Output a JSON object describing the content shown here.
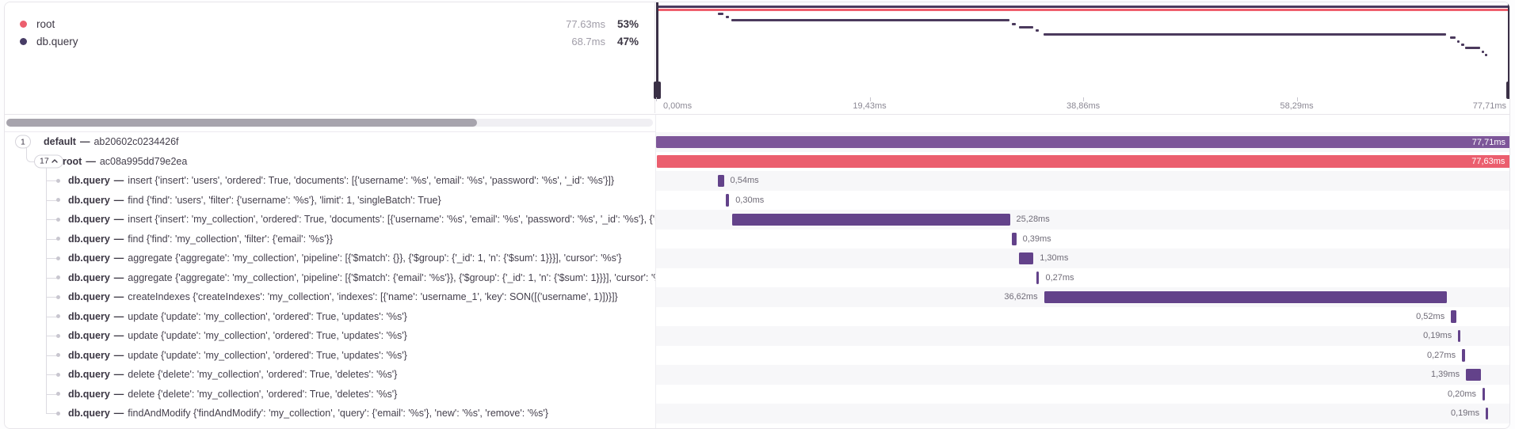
{
  "colors": {
    "root_red": "#eb5e6e",
    "default_purple": "#7d5699",
    "query_purple": "#63428a",
    "minimap_purple": "#4b3a5d",
    "minimap_red": "#ef606e",
    "handle_dark": "#3a3046",
    "stripe": "#f7f7f9"
  },
  "separator": "—",
  "legend": {
    "items": [
      {
        "id": "root",
        "label": "root",
        "dot_color": "#ec5f6e",
        "duration": "77.63ms",
        "percent": "53%"
      },
      {
        "id": "db-query",
        "label": "db.query",
        "dot_color": "#483d66",
        "duration": "68.7ms",
        "percent": "47%"
      }
    ]
  },
  "axis": {
    "unit": "ms",
    "ticks": [
      {
        "label": "0,00ms",
        "t": 0
      },
      {
        "label": "19,43ms",
        "t": 19.43
      },
      {
        "label": "38,86ms",
        "t": 38.86
      },
      {
        "label": "58,29ms",
        "t": 58.29
      },
      {
        "label": "77,71ms",
        "t": 77.71
      }
    ]
  },
  "trace": {
    "total_ms": 77.71,
    "rows": [
      {
        "badge": "1",
        "chevron": false,
        "name": "default",
        "detail": "ab20602c0234426f",
        "depth": 0,
        "kind": "default",
        "start_ms": 0,
        "duration_ms": 77.71,
        "bar_label": "77,71ms",
        "label_pos": "inside"
      },
      {
        "badge": "17",
        "chevron": true,
        "name": "root",
        "detail": "ac08a995dd79e2ea",
        "depth": 1,
        "kind": "root",
        "start_ms": 0.04,
        "duration_ms": 77.63,
        "bar_label": "77,63ms",
        "label_pos": "inside"
      },
      {
        "name": "db.query",
        "detail": "insert {'insert': 'users', 'ordered': True, 'documents': [{'username': '%s', 'email': '%s', 'password': '%s', '_id': '%s'}]}",
        "depth": 2,
        "kind": "query",
        "start_ms": 5.62,
        "duration_ms": 0.54,
        "bar_label": "0,54ms",
        "label_pos": "right"
      },
      {
        "name": "db.query",
        "detail": "find {'find': 'users', 'filter': {'username': '%s'}, 'limit': 1, 'singleBatch': True}",
        "depth": 2,
        "kind": "query",
        "start_ms": 6.34,
        "duration_ms": 0.3,
        "bar_label": "0,30ms",
        "label_pos": "right"
      },
      {
        "name": "db.query",
        "detail": "insert {'insert': 'my_collection', 'ordered': True, 'documents': [{'username': '%s', 'email': '%s', 'password': '%s', '_id': '%s'}, {'username': '%s', 'em",
        "depth": 2,
        "kind": "query",
        "start_ms": 6.88,
        "duration_ms": 25.28,
        "bar_label": "25,28ms",
        "label_pos": "right"
      },
      {
        "name": "db.query",
        "detail": "find {'find': 'my_collection', 'filter': {'email': '%s'}}",
        "depth": 2,
        "kind": "query",
        "start_ms": 32.35,
        "duration_ms": 0.39,
        "bar_label": "0,39ms",
        "label_pos": "right"
      },
      {
        "name": "db.query",
        "detail": "aggregate {'aggregate': 'my_collection', 'pipeline': [{'$match': {}}, {'$group': {'_id': 1, 'n': {'$sum': 1}}}], 'cursor': '%s'}",
        "depth": 2,
        "kind": "query",
        "start_ms": 33.0,
        "duration_ms": 1.3,
        "bar_label": "1,30ms",
        "label_pos": "right"
      },
      {
        "name": "db.query",
        "detail": "aggregate {'aggregate': 'my_collection', 'pipeline': [{'$match': {'email': '%s'}}, {'$group': {'_id': 1, 'n': {'$sum': 1}}}], 'cursor': '%s'}",
        "depth": 2,
        "kind": "query",
        "start_ms": 34.55,
        "duration_ms": 0.27,
        "bar_label": "0,27ms",
        "label_pos": "right"
      },
      {
        "name": "db.query",
        "detail": "createIndexes {'createIndexes': 'my_collection', 'indexes': [{'name': 'username_1', 'key': SON([('username', 1)])}]}",
        "depth": 2,
        "kind": "query",
        "start_ms": 35.26,
        "duration_ms": 36.62,
        "bar_label": "36,62ms",
        "label_pos": "left"
      },
      {
        "name": "db.query",
        "detail": "update {'update': 'my_collection', 'ordered': True, 'updates': '%s'}",
        "depth": 2,
        "kind": "query",
        "start_ms": 72.25,
        "duration_ms": 0.52,
        "bar_label": "0,52ms",
        "label_pos": "left"
      },
      {
        "name": "db.query",
        "detail": "update {'update': 'my_collection', 'ordered': True, 'updates': '%s'}",
        "depth": 2,
        "kind": "query",
        "start_ms": 72.9,
        "duration_ms": 0.19,
        "bar_label": "0,19ms",
        "label_pos": "left"
      },
      {
        "name": "db.query",
        "detail": "update {'update': 'my_collection', 'ordered': True, 'updates': '%s'}",
        "depth": 2,
        "kind": "query",
        "start_ms": 73.25,
        "duration_ms": 0.27,
        "bar_label": "0,27ms",
        "label_pos": "left"
      },
      {
        "name": "db.query",
        "detail": "delete {'delete': 'my_collection', 'ordered': True, 'deletes': '%s'}",
        "depth": 2,
        "kind": "query",
        "start_ms": 73.61,
        "duration_ms": 1.39,
        "bar_label": "1,39ms",
        "label_pos": "left"
      },
      {
        "name": "db.query",
        "detail": "delete {'delete': 'my_collection', 'ordered': True, 'deletes': '%s'}",
        "depth": 2,
        "kind": "query",
        "start_ms": 75.12,
        "duration_ms": 0.2,
        "bar_label": "0,20ms",
        "label_pos": "left"
      },
      {
        "name": "db.query",
        "detail": "findAndModify {'findAndModify': 'my_collection', 'query': {'email': '%s'}, 'new': '%s', 'remove': '%s'}",
        "depth": 2,
        "kind": "query",
        "start_ms": 75.41,
        "duration_ms": 0.19,
        "bar_label": "0,19ms",
        "label_pos": "left"
      }
    ]
  }
}
